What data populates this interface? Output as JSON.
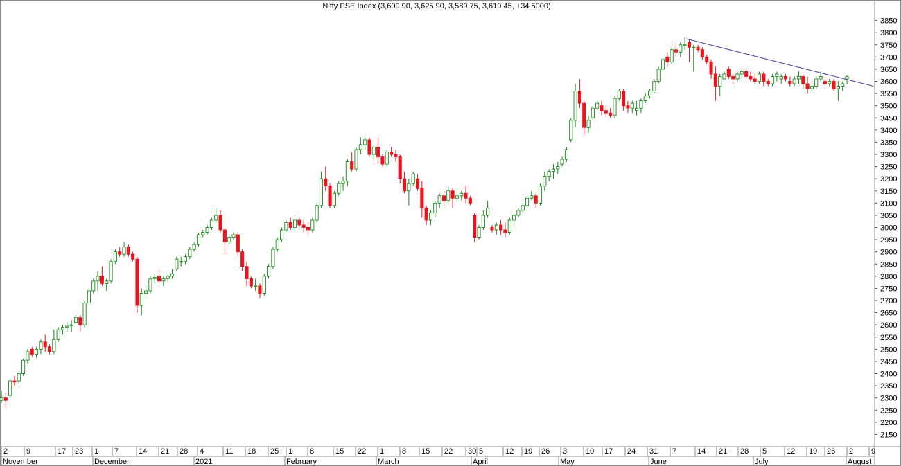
{
  "chart_data": {
    "type": "candlestick",
    "title": "Nifty PSE Index (3,609.90, 3,625.90, 3,589.75, 3,619.45, +34.5000)",
    "ylim": [
      2100,
      3900
    ],
    "y_ticks": [
      2150,
      2200,
      2250,
      2300,
      2350,
      2400,
      2450,
      2500,
      2550,
      2600,
      2650,
      2700,
      2750,
      2800,
      2850,
      2900,
      2950,
      3000,
      3050,
      3100,
      3150,
      3200,
      3250,
      3300,
      3350,
      3400,
      3450,
      3500,
      3550,
      3600,
      3650,
      3700,
      3750,
      3800,
      3850
    ],
    "x_day_ticks": [
      "2",
      "9",
      "17",
      "23",
      "1",
      "7",
      "14",
      "21",
      "28",
      "4",
      "11",
      "18",
      "25",
      "1",
      "8",
      "15",
      "22",
      "1",
      "8",
      "15",
      "22",
      "30",
      "5",
      "12",
      "19",
      "26",
      "3",
      "10",
      "17",
      "24",
      "31",
      "7",
      "14",
      "21",
      "28",
      "5",
      "12",
      "19",
      "26",
      "2",
      "9"
    ],
    "x_month_labels": [
      "November",
      "December",
      "2021",
      "February",
      "March",
      "April",
      "May",
      "June",
      "July",
      "August"
    ],
    "up_color": "#1a8a1a",
    "down_color": "#e8141e",
    "line_color": "#4c4caa",
    "trendline": {
      "from": [
        3775,
        0
      ],
      "to": [
        3580,
        1
      ]
    },
    "candles": [
      [
        2290,
        2330,
        2280,
        2300
      ],
      [
        2300,
        2320,
        2260,
        2290
      ],
      [
        2310,
        2380,
        2300,
        2370
      ],
      [
        2370,
        2390,
        2350,
        2365
      ],
      [
        2370,
        2410,
        2360,
        2400
      ],
      [
        2400,
        2460,
        2390,
        2455
      ],
      [
        2455,
        2500,
        2440,
        2490
      ],
      [
        2500,
        2510,
        2470,
        2480
      ],
      [
        2480,
        2510,
        2465,
        2500
      ],
      [
        2500,
        2540,
        2480,
        2530
      ],
      [
        2530,
        2560,
        2490,
        2510
      ],
      [
        2510,
        2520,
        2480,
        2490
      ],
      [
        2490,
        2580,
        2480,
        2540
      ],
      [
        2540,
        2590,
        2530,
        2580
      ],
      [
        2580,
        2600,
        2560,
        2590
      ],
      [
        2590,
        2610,
        2570,
        2595
      ],
      [
        2600,
        2620,
        2570,
        2600
      ],
      [
        2610,
        2640,
        2600,
        2630
      ],
      [
        2630,
        2640,
        2570,
        2600
      ],
      [
        2600,
        2700,
        2590,
        2690
      ],
      [
        2690,
        2750,
        2680,
        2740
      ],
      [
        2740,
        2790,
        2730,
        2780
      ],
      [
        2780,
        2820,
        2740,
        2800
      ],
      [
        2800,
        2840,
        2760,
        2770
      ],
      [
        2770,
        2790,
        2740,
        2780
      ],
      [
        2780,
        2870,
        2770,
        2860
      ],
      [
        2860,
        2910,
        2850,
        2900
      ],
      [
        2900,
        2920,
        2880,
        2890
      ],
      [
        2890,
        2940,
        2880,
        2920
      ],
      [
        2920,
        2930,
        2880,
        2890
      ],
      [
        2890,
        2900,
        2860,
        2870
      ],
      [
        2870,
        2880,
        2650,
        2680
      ],
      [
        2680,
        2750,
        2640,
        2730
      ],
      [
        2730,
        2760,
        2710,
        2740
      ],
      [
        2740,
        2800,
        2730,
        2790
      ],
      [
        2790,
        2810,
        2770,
        2795
      ],
      [
        2800,
        2830,
        2770,
        2780
      ],
      [
        2780,
        2800,
        2760,
        2790
      ],
      [
        2790,
        2810,
        2780,
        2800
      ],
      [
        2800,
        2830,
        2790,
        2810
      ],
      [
        2830,
        2880,
        2820,
        2870
      ],
      [
        2860,
        2880,
        2840,
        2860
      ],
      [
        2860,
        2890,
        2850,
        2880
      ],
      [
        2880,
        2920,
        2870,
        2910
      ],
      [
        2910,
        2940,
        2900,
        2930
      ],
      [
        2930,
        2980,
        2920,
        2970
      ],
      [
        2970,
        2990,
        2960,
        2980
      ],
      [
        2980,
        3010,
        2970,
        3000
      ],
      [
        3000,
        3040,
        2990,
        3030
      ],
      [
        3030,
        3080,
        3020,
        3050
      ],
      [
        3050,
        3070,
        2980,
        2990
      ],
      [
        2990,
        3000,
        2890,
        2940
      ],
      [
        2940,
        2970,
        2930,
        2960
      ],
      [
        2960,
        2980,
        2950,
        2970
      ],
      [
        2970,
        2980,
        2880,
        2900
      ],
      [
        2900,
        2910,
        2820,
        2840
      ],
      [
        2840,
        2860,
        2760,
        2790
      ],
      [
        2790,
        2800,
        2750,
        2760
      ],
      [
        2760,
        2790,
        2740,
        2760
      ],
      [
        2760,
        2770,
        2710,
        2730
      ],
      [
        2730,
        2810,
        2720,
        2800
      ],
      [
        2800,
        2850,
        2790,
        2840
      ],
      [
        2840,
        2920,
        2830,
        2910
      ],
      [
        2910,
        2960,
        2900,
        2950
      ],
      [
        2950,
        3000,
        2940,
        2990
      ],
      [
        2990,
        3030,
        2980,
        3020
      ],
      [
        3020,
        3040,
        2990,
        3000
      ],
      [
        3000,
        3050,
        2980,
        3030
      ],
      [
        3030,
        3040,
        3000,
        3010
      ],
      [
        3010,
        3030,
        2980,
        3000
      ],
      [
        3000,
        3020,
        2970,
        2990
      ],
      [
        2990,
        3040,
        2980,
        3030
      ],
      [
        3030,
        3100,
        3020,
        3090
      ],
      [
        3090,
        3230,
        3080,
        3200
      ],
      [
        3200,
        3250,
        3150,
        3170
      ],
      [
        3170,
        3180,
        3080,
        3090
      ],
      [
        3090,
        3150,
        3080,
        3140
      ],
      [
        3140,
        3190,
        3130,
        3180
      ],
      [
        3180,
        3210,
        3150,
        3190
      ],
      [
        3190,
        3280,
        3170,
        3270
      ],
      [
        3270,
        3310,
        3230,
        3240
      ],
      [
        3240,
        3330,
        3230,
        3320
      ],
      [
        3320,
        3370,
        3300,
        3340
      ],
      [
        3340,
        3380,
        3320,
        3360
      ],
      [
        3360,
        3370,
        3290,
        3300
      ],
      [
        3300,
        3340,
        3270,
        3330
      ],
      [
        3330,
        3370,
        3260,
        3290
      ],
      [
        3290,
        3300,
        3250,
        3260
      ],
      [
        3260,
        3320,
        3250,
        3310
      ],
      [
        3310,
        3330,
        3290,
        3300
      ],
      [
        3300,
        3320,
        3270,
        3290
      ],
      [
        3290,
        3300,
        3180,
        3200
      ],
      [
        3200,
        3230,
        3140,
        3150
      ],
      [
        3150,
        3200,
        3090,
        3180
      ],
      [
        3180,
        3230,
        3170,
        3220
      ],
      [
        3200,
        3220,
        3150,
        3160
      ],
      [
        3160,
        3190,
        3040,
        3080
      ],
      [
        3080,
        3090,
        3010,
        3030
      ],
      [
        3030,
        3070,
        3010,
        3060
      ],
      [
        3060,
        3110,
        3040,
        3100
      ],
      [
        3100,
        3140,
        3080,
        3130
      ],
      [
        3130,
        3150,
        3090,
        3110
      ],
      [
        3110,
        3170,
        3100,
        3150
      ],
      [
        3150,
        3160,
        3080,
        3120
      ],
      [
        3120,
        3160,
        3100,
        3130
      ],
      [
        3130,
        3150,
        3110,
        3140
      ],
      [
        3140,
        3170,
        3100,
        3120
      ],
      [
        3120,
        3130,
        3090,
        3100
      ],
      [
        3050,
        3060,
        2940,
        2960
      ],
      [
        2960,
        3010,
        2950,
        3000
      ],
      [
        3000,
        3070,
        2990,
        3050
      ],
      [
        3050,
        3110,
        3040,
        3080
      ],
      [
        3000,
        3010,
        2980,
        2990
      ],
      [
        2990,
        3020,
        2970,
        3010
      ],
      [
        3010,
        3030,
        2970,
        2990
      ],
      [
        2990,
        3020,
        2960,
        2980
      ],
      [
        2980,
        3040,
        2970,
        3030
      ],
      [
        3030,
        3060,
        3010,
        3050
      ],
      [
        3050,
        3080,
        3040,
        3070
      ],
      [
        3070,
        3100,
        3060,
        3090
      ],
      [
        3090,
        3130,
        3080,
        3120
      ],
      [
        3120,
        3150,
        3110,
        3130
      ],
      [
        3130,
        3140,
        3080,
        3100
      ],
      [
        3100,
        3180,
        3090,
        3170
      ],
      [
        3170,
        3230,
        3150,
        3210
      ],
      [
        3210,
        3240,
        3190,
        3230
      ],
      [
        3230,
        3260,
        3200,
        3240
      ],
      [
        3240,
        3270,
        3220,
        3250
      ],
      [
        3260,
        3290,
        3250,
        3280
      ],
      [
        3280,
        3330,
        3270,
        3320
      ],
      [
        3360,
        3450,
        3350,
        3440
      ],
      [
        3440,
        3590,
        3410,
        3560
      ],
      [
        3560,
        3610,
        3490,
        3510
      ],
      [
        3510,
        3520,
        3380,
        3410
      ],
      [
        3410,
        3460,
        3390,
        3440
      ],
      [
        3450,
        3500,
        3440,
        3490
      ],
      [
        3490,
        3520,
        3480,
        3510
      ],
      [
        3500,
        3520,
        3460,
        3480
      ],
      [
        3480,
        3500,
        3450,
        3470
      ],
      [
        3470,
        3490,
        3450,
        3460
      ],
      [
        3460,
        3540,
        3450,
        3530
      ],
      [
        3530,
        3570,
        3520,
        3560
      ],
      [
        3560,
        3570,
        3480,
        3500
      ],
      [
        3500,
        3520,
        3470,
        3490
      ],
      [
        3490,
        3520,
        3470,
        3510
      ],
      [
        3480,
        3520,
        3460,
        3490
      ],
      [
        3490,
        3530,
        3470,
        3520
      ],
      [
        3520,
        3550,
        3510,
        3540
      ],
      [
        3540,
        3570,
        3530,
        3560
      ],
      [
        3560,
        3610,
        3550,
        3600
      ],
      [
        3600,
        3660,
        3590,
        3650
      ],
      [
        3650,
        3700,
        3640,
        3690
      ],
      [
        3700,
        3720,
        3660,
        3680
      ],
      [
        3680,
        3740,
        3670,
        3730
      ],
      [
        3730,
        3760,
        3700,
        3720
      ],
      [
        3720,
        3760,
        3700,
        3750
      ],
      [
        3750,
        3780,
        3730,
        3750
      ],
      [
        3760,
        3770,
        3680,
        3740
      ],
      [
        3740,
        3750,
        3640,
        3740
      ],
      [
        3740,
        3750,
        3720,
        3730
      ],
      [
        3730,
        3740,
        3690,
        3700
      ],
      [
        3700,
        3710,
        3670,
        3680
      ],
      [
        3680,
        3690,
        3610,
        3630
      ],
      [
        3630,
        3660,
        3520,
        3580
      ],
      [
        3580,
        3630,
        3540,
        3620
      ],
      [
        3610,
        3640,
        3610,
        3630
      ],
      [
        3650,
        3660,
        3610,
        3620
      ],
      [
        3620,
        3630,
        3590,
        3610
      ],
      [
        3610,
        3640,
        3600,
        3630
      ],
      [
        3630,
        3650,
        3610,
        3640
      ],
      [
        3640,
        3650,
        3610,
        3620
      ],
      [
        3620,
        3640,
        3600,
        3610
      ],
      [
        3610,
        3630,
        3590,
        3600
      ],
      [
        3600,
        3640,
        3590,
        3630
      ],
      [
        3630,
        3640,
        3580,
        3600
      ],
      [
        3600,
        3610,
        3580,
        3590
      ],
      [
        3590,
        3630,
        3580,
        3620
      ],
      [
        3620,
        3640,
        3600,
        3630
      ],
      [
        3610,
        3630,
        3590,
        3620
      ],
      [
        3620,
        3630,
        3600,
        3610
      ],
      [
        3600,
        3620,
        3580,
        3590
      ],
      [
        3590,
        3620,
        3580,
        3610
      ],
      [
        3610,
        3640,
        3590,
        3620
      ],
      [
        3620,
        3630,
        3570,
        3590
      ],
      [
        3590,
        3620,
        3550,
        3570
      ],
      [
        3570,
        3600,
        3560,
        3580
      ],
      [
        3580,
        3620,
        3570,
        3610
      ],
      [
        3610,
        3640,
        3600,
        3620
      ],
      [
        3600,
        3620,
        3580,
        3590
      ],
      [
        3590,
        3610,
        3580,
        3600
      ],
      [
        3600,
        3610,
        3560,
        3570
      ],
      [
        3570,
        3600,
        3520,
        3580
      ],
      [
        3580,
        3600,
        3560,
        3590
      ],
      [
        3609.9,
        3625.9,
        3589.75,
        3619.45
      ]
    ]
  }
}
